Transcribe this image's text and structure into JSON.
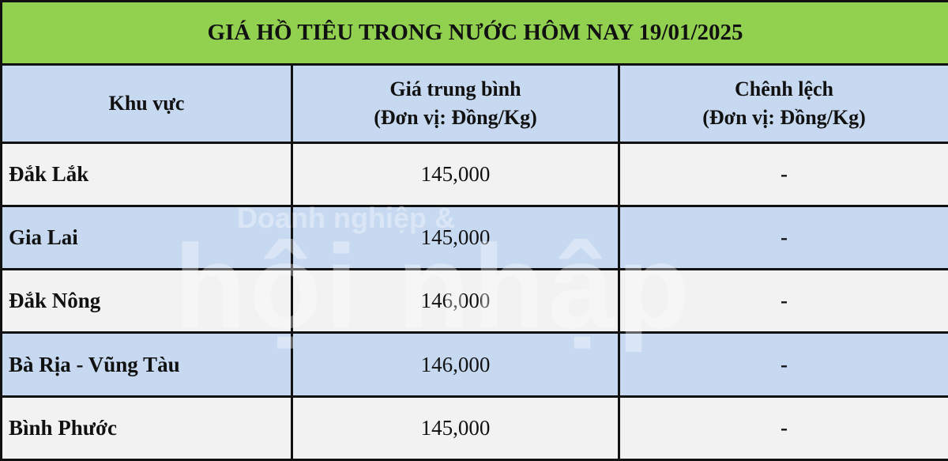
{
  "title": "GIÁ HỒ TIÊU TRONG NƯỚC HÔM NAY 19/01/2025",
  "headers": {
    "region": "Khu vực",
    "price_line1": "Giá trung bình",
    "price_line2": "(Đơn vị: Đồng/Kg)",
    "diff_line1": "Chênh lệch",
    "diff_line2": "(Đơn vị: Đồng/Kg)"
  },
  "rows": [
    {
      "region": "Đắk Lắk",
      "price": "145,000",
      "diff": "-"
    },
    {
      "region": "Gia Lai",
      "price": "145,000",
      "diff": "-"
    },
    {
      "region": "Đắk Nông",
      "price": "146,000",
      "diff": "-"
    },
    {
      "region": "Bà Rịa - Vũng Tàu",
      "price": "146,000",
      "diff": "-"
    },
    {
      "region": "Bình Phước",
      "price": "145,000",
      "diff": "-"
    }
  ],
  "watermark": {
    "small": "Doanh nghiệp &",
    "big": "hội nhập"
  },
  "colors": {
    "title_bg": "#92d050",
    "header_bg": "#c6d9f0",
    "alt_row_bg": "#c6d9f0",
    "row_bg": "#f2f2f2"
  }
}
